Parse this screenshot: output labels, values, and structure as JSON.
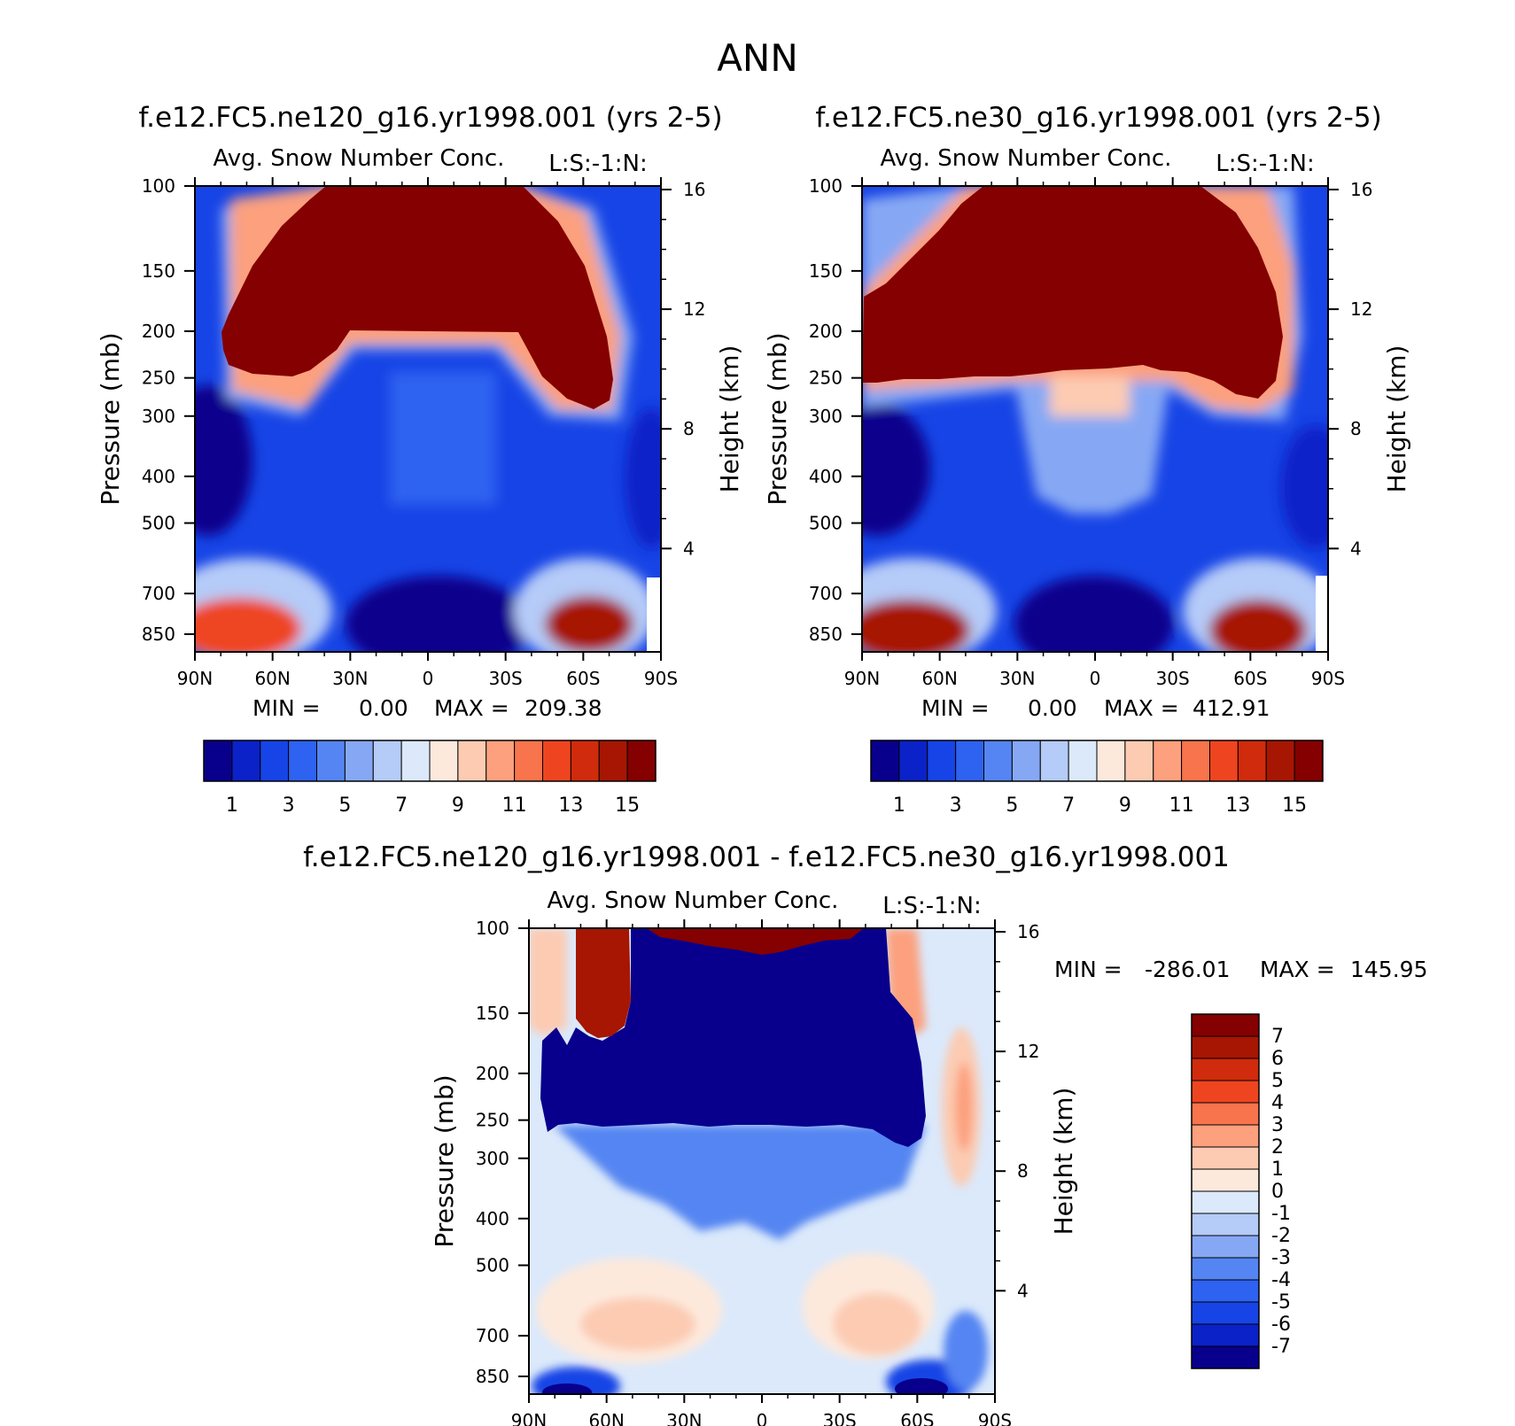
{
  "page_title": "ANN",
  "chart_data": [
    {
      "type": "heatmap",
      "title": "f.e12.FC5.ne120_g16.yr1998.001 (yrs 2-5)",
      "subtitle": "Avg. Snow Number Conc.",
      "units_label": "L:S:-1:N:",
      "ylabel": "Pressure (mb)",
      "ylabel_right": "Height (km)",
      "x_ticks": [
        "90N",
        "60N",
        "30N",
        "0",
        "30S",
        "60S",
        "90S"
      ],
      "y_ticks": [
        "100",
        "150",
        "200",
        "250",
        "300",
        "400",
        "500",
        "700",
        "850"
      ],
      "y_ticks_right": [
        "16",
        "12",
        "8",
        "4"
      ],
      "min_label": "MIN =",
      "min_value": "0.00",
      "max_label": "MAX =",
      "max_value": "209.38",
      "colorbar_labels": [
        "1",
        "3",
        "5",
        "7",
        "9",
        "11",
        "13",
        "15"
      ],
      "levels": [
        1,
        2,
        3,
        4,
        5,
        6,
        7,
        8,
        9,
        10,
        11,
        12,
        13,
        14,
        15
      ],
      "colors": [
        "#08008c",
        "#0a22c8",
        "#1744e6",
        "#2e62f0",
        "#5585f2",
        "#86a8f4",
        "#b5cbf8",
        "#dbe9fb",
        "#fde9dc",
        "#fccbb2",
        "#fca07e",
        "#f8744c",
        "#ee4520",
        "#d02b0c",
        "#a61603",
        "#850000"
      ]
    },
    {
      "type": "heatmap",
      "title": "f.e12.FC5.ne30_g16.yr1998.001 (yrs 2-5)",
      "subtitle": "Avg. Snow Number Conc.",
      "units_label": "L:S:-1:N:",
      "ylabel": "Pressure (mb)",
      "ylabel_right": "Height (km)",
      "x_ticks": [
        "90N",
        "60N",
        "30N",
        "0",
        "30S",
        "60S",
        "90S"
      ],
      "y_ticks": [
        "100",
        "150",
        "200",
        "250",
        "300",
        "400",
        "500",
        "700",
        "850"
      ],
      "y_ticks_right": [
        "16",
        "12",
        "8",
        "4"
      ],
      "min_label": "MIN =",
      "min_value": "0.00",
      "max_label": "MAX =",
      "max_value": "412.91",
      "colorbar_labels": [
        "1",
        "3",
        "5",
        "7",
        "9",
        "11",
        "13",
        "15"
      ],
      "levels": [
        1,
        2,
        3,
        4,
        5,
        6,
        7,
        8,
        9,
        10,
        11,
        12,
        13,
        14,
        15
      ],
      "colors": [
        "#08008c",
        "#0a22c8",
        "#1744e6",
        "#2e62f0",
        "#5585f2",
        "#86a8f4",
        "#b5cbf8",
        "#dbe9fb",
        "#fde9dc",
        "#fccbb2",
        "#fca07e",
        "#f8744c",
        "#ee4520",
        "#d02b0c",
        "#a61603",
        "#850000"
      ]
    },
    {
      "type": "heatmap",
      "title": "f.e12.FC5.ne120_g16.yr1998.001 - f.e12.FC5.ne30_g16.yr1998.001",
      "subtitle": "Avg. Snow Number Conc.",
      "units_label": "L:S:-1:N:",
      "ylabel": "Pressure (mb)",
      "ylabel_right": "Height (km)",
      "x_ticks": [
        "90N",
        "60N",
        "30N",
        "0",
        "30S",
        "60S",
        "90S"
      ],
      "y_ticks": [
        "100",
        "150",
        "200",
        "250",
        "300",
        "400",
        "500",
        "700",
        "850"
      ],
      "y_ticks_right": [
        "16",
        "12",
        "8",
        "4"
      ],
      "min_label": "MIN =",
      "min_value": "-286.01",
      "max_label": "MAX =",
      "max_value": "145.95",
      "colorbar_labels": [
        "7",
        "6",
        "5",
        "4",
        "3",
        "2",
        "1",
        "0",
        "-1",
        "-2",
        "-3",
        "-4",
        "-5",
        "-6",
        "-7"
      ],
      "levels": [
        -7,
        -6,
        -5,
        -4,
        -3,
        -2,
        -1,
        0,
        1,
        2,
        3,
        4,
        5,
        6,
        7
      ],
      "colors": [
        "#08008c",
        "#0a22c8",
        "#1744e6",
        "#2e62f0",
        "#5585f2",
        "#86a8f4",
        "#b5cbf8",
        "#dbe9fb",
        "#fde9dc",
        "#fccbb2",
        "#fca07e",
        "#f8744c",
        "#ee4520",
        "#d02b0c",
        "#a61603",
        "#850000"
      ]
    }
  ]
}
